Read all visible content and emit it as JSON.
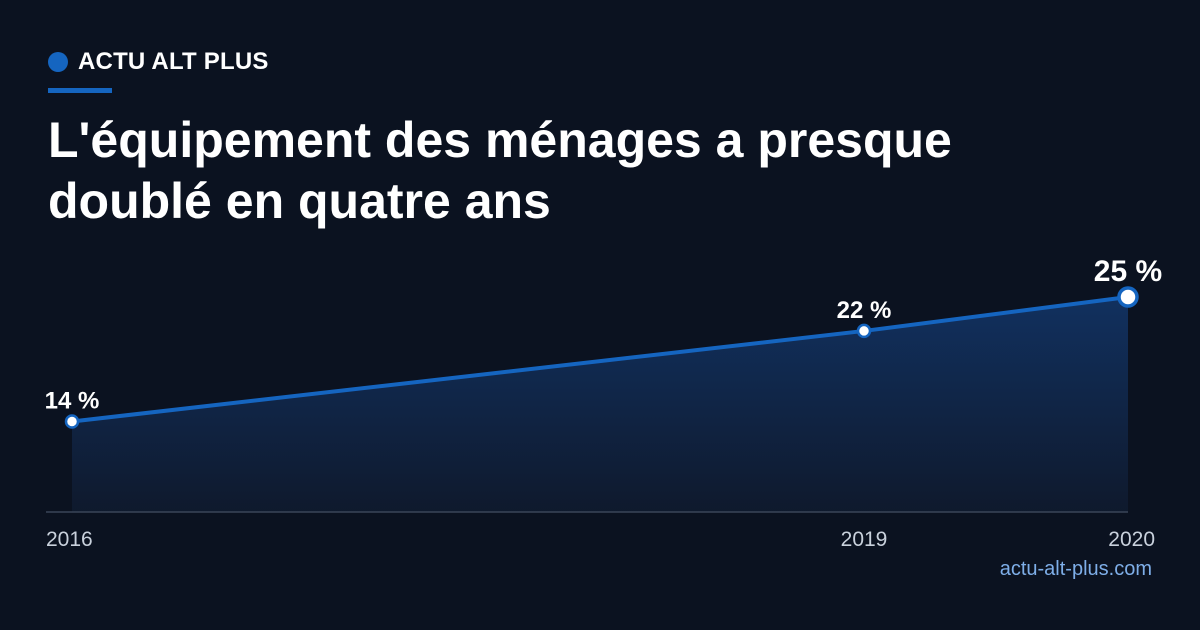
{
  "brand": {
    "name": "ACTU ALT PLUS",
    "accent_color": "#1565c0"
  },
  "headline": "L'équipement des ménages a presque doublé en quatre ans",
  "source": "actu-alt-plus.com",
  "chart_data": {
    "type": "area",
    "x": [
      "2016",
      "2019",
      "2020"
    ],
    "values": [
      14,
      22,
      25
    ],
    "data_labels": [
      "14 %",
      "22 %",
      "25 %"
    ],
    "title": "L'équipement des ménages a presque doublé en quatre ans",
    "xlabel": "",
    "ylabel": "",
    "unit": "%",
    "ylim": [
      6,
      26.5
    ],
    "x_range": [
      2016,
      2020
    ],
    "grid": false,
    "line_color": "#1565c0",
    "marker_fill": "#ffffff",
    "highlight_last_point": true
  }
}
